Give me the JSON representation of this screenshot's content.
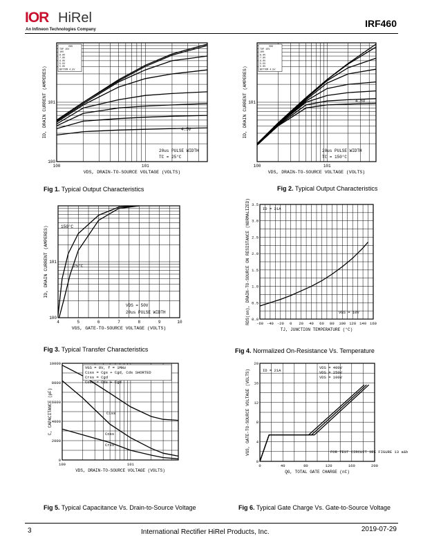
{
  "header": {
    "logo_mark": "IOR",
    "logo_text": "HiRel",
    "logo_sub": "An Infineon Technologies Company",
    "part_number": "IRF460"
  },
  "figures": [
    {
      "num": "Fig 1.",
      "title": "Typical Output Characteristics"
    },
    {
      "num": "Fig 2.",
      "title": "Typical Output Characteristics"
    },
    {
      "num": "Fig 3.",
      "title": "Typical Transfer Characteristics"
    },
    {
      "num": "Fig 4.",
      "title": "Normalized On-Resistance Vs. Temperature"
    },
    {
      "num": "Fig 5.",
      "title": "Typical Capacitance Vs. Drain-to-Source Voltage"
    },
    {
      "num": "Fig 6.",
      "title": "Typical Gate Charge Vs. Gate-to-Source Voltage"
    }
  ],
  "footer": {
    "page": "3",
    "company": "International Rectifier HiRel Products, Inc.",
    "date": "2019-07-29"
  },
  "chart_data": [
    {
      "type": "line",
      "id": "fig1",
      "xlabel": "VDS, DRAIN-TO-SOURCE VOLTAGE (VOLTS)",
      "ylabel": "ID, DRAIN CURRENT (AMPERES)",
      "x_scale": "log",
      "y_scale": "log",
      "xlim": [
        1,
        50
      ],
      "ylim": [
        1,
        100
      ],
      "x_ticks": [
        "10^0",
        "10^1"
      ],
      "y_ticks": [
        "10^0",
        "10^1"
      ],
      "legend_title": "VGS",
      "legend": [
        "TOP 15V",
        "10V",
        "8.0V",
        "7.0V",
        "6.0V",
        "5.5V",
        "5.0V",
        "BOTTOM 4.5V"
      ],
      "annotations": [
        "4.5V",
        "20us PULSE WIDTH",
        "TC = 25°C"
      ],
      "series": [
        {
          "name": "15V",
          "x": [
            1,
            2,
            5,
            10,
            20,
            50
          ],
          "y": [
            5,
            10,
            24,
            42,
            65,
            95
          ]
        },
        {
          "name": "10V",
          "x": [
            1,
            2,
            5,
            10,
            20,
            50
          ],
          "y": [
            5,
            10,
            23,
            40,
            62,
            90
          ]
        },
        {
          "name": "8.0V",
          "x": [
            1,
            2,
            5,
            10,
            20,
            50
          ],
          "y": [
            4.8,
            9.5,
            22,
            35,
            50,
            60
          ]
        },
        {
          "name": "7.0V",
          "x": [
            1,
            2,
            5,
            10,
            20,
            50
          ],
          "y": [
            4.6,
            9,
            18,
            25,
            30,
            35
          ]
        },
        {
          "name": "6.0V",
          "x": [
            1,
            2,
            5,
            10,
            20,
            50
          ],
          "y": [
            4.3,
            8,
            11,
            13,
            14,
            15
          ]
        },
        {
          "name": "5.5V",
          "x": [
            1,
            2,
            5,
            10,
            20,
            50
          ],
          "y": [
            4,
            6.5,
            8,
            8.6,
            9,
            9.5
          ]
        },
        {
          "name": "5.0V",
          "x": [
            1,
            2,
            5,
            10,
            20,
            50
          ],
          "y": [
            3.6,
            4.8,
            5.3,
            5.6,
            5.8,
            6
          ]
        },
        {
          "name": "4.5V",
          "x": [
            1,
            2,
            5,
            10,
            20,
            50
          ],
          "y": [
            2.8,
            3.2,
            3.4,
            3.5,
            3.6,
            3.7
          ]
        }
      ]
    },
    {
      "type": "line",
      "id": "fig2",
      "xlabel": "VDS, DRAIN-TO-SOURCE VOLTAGE (VOLTS)",
      "ylabel": "ID, DRAIN CURRENT (AMPERES)",
      "x_scale": "log",
      "y_scale": "log",
      "xlim": [
        1,
        50
      ],
      "ylim": [
        1,
        100
      ],
      "x_ticks": [
        "10^0",
        "10^1"
      ],
      "y_ticks": [
        "10^1"
      ],
      "legend_title": "VGS",
      "legend": [
        "TOP 15V",
        "10V",
        "8.0V",
        "7.0V",
        "6.0V",
        "5.5V",
        "5.0V",
        "BOTTOM 4.5V"
      ],
      "annotations": [
        "4.5V",
        "20us PULSE WIDTH",
        "TC = 150°C"
      ],
      "series": [
        {
          "name": "15V",
          "x": [
            1,
            2,
            5,
            10,
            20,
            50
          ],
          "y": [
            2,
            4.5,
            12,
            24,
            45,
            95
          ]
        },
        {
          "name": "10V",
          "x": [
            1,
            2,
            5,
            10,
            20,
            50
          ],
          "y": [
            2,
            4.5,
            12,
            24,
            44,
            85
          ]
        },
        {
          "name": "8.0V",
          "x": [
            1,
            2,
            5,
            10,
            20,
            50
          ],
          "y": [
            2,
            4.4,
            11.5,
            23,
            38,
            55
          ]
        },
        {
          "name": "7.0V",
          "x": [
            1,
            2,
            5,
            10,
            20,
            50
          ],
          "y": [
            2,
            4.4,
            11,
            21,
            30,
            36
          ]
        },
        {
          "name": "6.0V",
          "x": [
            1,
            2,
            5,
            10,
            20,
            50
          ],
          "y": [
            2,
            4.3,
            10.5,
            17,
            20,
            22
          ]
        },
        {
          "name": "5.5V",
          "x": [
            1,
            2,
            5,
            10,
            20,
            50
          ],
          "y": [
            1.9,
            4.2,
            10,
            13,
            14.5,
            15.5
          ]
        },
        {
          "name": "5.0V",
          "x": [
            1,
            2,
            5,
            10,
            20,
            50
          ],
          "y": [
            1.9,
            4.1,
            9,
            10.5,
            11,
            11.5
          ]
        },
        {
          "name": "4.5V",
          "x": [
            1,
            2,
            5,
            10,
            20,
            50
          ],
          "y": [
            1.9,
            4,
            8,
            9,
            9.3,
            9.6
          ]
        }
      ]
    },
    {
      "type": "line",
      "id": "fig3",
      "xlabel": "VGS, GATE-TO-SOURCE VOLTAGE (VOLTS)",
      "ylabel": "ID, DRAIN CURRENT (AMPERES)",
      "y_scale": "log",
      "xlim": [
        4,
        10
      ],
      "ylim": [
        1,
        100
      ],
      "x_ticks": [
        "4",
        "5",
        "6",
        "7",
        "8",
        "9",
        "10"
      ],
      "y_ticks": [
        "10^0",
        "10^1"
      ],
      "annotations": [
        "150°C",
        "25°C",
        "VDS = 50V",
        "20us PULSE WIDTH"
      ],
      "series": [
        {
          "name": "150°C",
          "x": [
            4,
            4.2,
            4.5,
            5,
            6,
            7,
            8
          ],
          "y": [
            1.1,
            5,
            14,
            32,
            68,
            95,
            100
          ]
        },
        {
          "name": "25°C",
          "x": [
            4.05,
            4.3,
            4.6,
            5,
            6,
            7,
            8
          ],
          "y": [
            1,
            2.2,
            6,
            16,
            55,
            90,
            100
          ]
        }
      ]
    },
    {
      "type": "line",
      "id": "fig4",
      "xlabel": "TJ, JUNCTION TEMPERATURE (°C)",
      "ylabel": "RDS(on), DRAIN-TO-SOURCE ON RESISTANCE (NORMALIZED)",
      "xlim": [
        -60,
        160
      ],
      "ylim": [
        0,
        3.5
      ],
      "x_ticks": [
        "-60",
        "-40",
        "-20",
        "0",
        "20",
        "40",
        "60",
        "80",
        "100",
        "120",
        "140",
        "160"
      ],
      "y_ticks": [
        "0.0",
        "0.5",
        "1.0",
        "1.5",
        "2.0",
        "2.5",
        "3.0",
        "3.5"
      ],
      "annotations": [
        "ID = 21A",
        "VGS = 10V"
      ],
      "series": [
        {
          "name": "RDS(on)",
          "x": [
            -60,
            -40,
            -20,
            0,
            20,
            40,
            60,
            80,
            100,
            120,
            140,
            150
          ],
          "y": [
            0.4,
            0.5,
            0.6,
            0.72,
            0.86,
            1.0,
            1.17,
            1.37,
            1.6,
            1.86,
            2.17,
            2.35
          ]
        }
      ]
    },
    {
      "type": "line",
      "id": "fig5",
      "xlabel": "VDS, DRAIN-TO-SOURCE VOLTAGE (VOLTS)",
      "ylabel": "C, CAPACITANCE (pF)",
      "x_scale": "log",
      "xlim": [
        1,
        50
      ],
      "ylim": [
        0,
        10000
      ],
      "x_ticks": [
        "10^0",
        "10^1"
      ],
      "y_ticks": [
        "0",
        "2000",
        "4000",
        "6000",
        "8000",
        "10000"
      ],
      "legend": [
        "VGS = 0V, f = 1MHz",
        "Ciss = Cgs + Cgd, Cds SHORTED",
        "Crss = Cgd",
        "Coss = Cds + Cgd"
      ],
      "annotations": [
        "Ciss",
        "Coss",
        "Crss"
      ],
      "series": [
        {
          "name": "Ciss",
          "x": [
            1,
            2,
            5,
            10,
            20,
            30,
            50
          ],
          "y": [
            9800,
            8700,
            6900,
            5500,
            4500,
            4200,
            4100
          ]
        },
        {
          "name": "Coss",
          "x": [
            1,
            2,
            5,
            10,
            20,
            30,
            50
          ],
          "y": [
            8200,
            6400,
            3700,
            2300,
            1200,
            700,
            400
          ]
        },
        {
          "name": "Crss",
          "x": [
            1,
            2,
            5,
            10,
            20,
            30,
            50
          ],
          "y": [
            3200,
            2600,
            1800,
            1000,
            500,
            250,
            120
          ]
        }
      ]
    },
    {
      "type": "line",
      "id": "fig6",
      "xlabel": "QG, TOTAL GATE CHARGE (nC)",
      "ylabel": "VGS, GATE-TO-SOURCE VOLTAGE (VOLTS)",
      "xlim": [
        0,
        200
      ],
      "ylim": [
        0,
        20
      ],
      "x_ticks": [
        "0",
        "40",
        "80",
        "120",
        "160",
        "200"
      ],
      "y_ticks": [
        "0",
        "4",
        "8",
        "12",
        "16",
        "20"
      ],
      "annotations": [
        "ID = 21A",
        "VDS = 400V",
        "VDS = 250V",
        "VDS = 100V",
        "FOR TEST CIRCUIT SEE FIGURE 13 a&b"
      ],
      "series": [
        {
          "name": "VDS = 400V",
          "x": [
            0,
            16,
            95,
            190
          ],
          "y": [
            0,
            5.4,
            5.4,
            15.6
          ]
        },
        {
          "name": "VDS = 250V",
          "x": [
            0,
            16,
            90,
            186
          ],
          "y": [
            0,
            5.4,
            5.4,
            15.6
          ]
        },
        {
          "name": "VDS = 100V",
          "x": [
            0,
            16,
            85,
            182
          ],
          "y": [
            0,
            5.4,
            5.4,
            15.6
          ]
        }
      ]
    }
  ]
}
